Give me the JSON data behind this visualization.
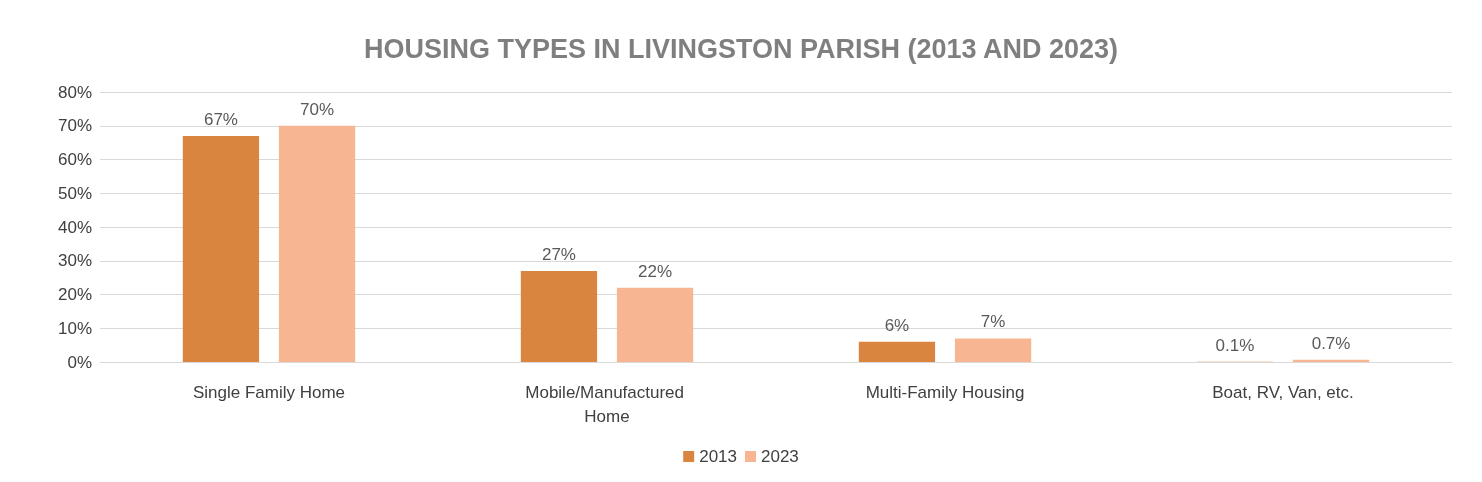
{
  "chart_data": {
    "type": "bar",
    "title": "HOUSING TYPES IN LIVINGSTON PARISH (2013 AND 2023)",
    "categories": [
      "Single Family Home",
      "Mobile/Manufactured Home",
      "Multi-Family Housing",
      "Boat, RV, Van, etc."
    ],
    "series": [
      {
        "name": "2013",
        "color": "#d9843f",
        "values": [
          67,
          27,
          6,
          0.1
        ],
        "value_labels": [
          "67%",
          "27%",
          "6%",
          "0.1%"
        ]
      },
      {
        "name": "2023",
        "color": "#f7b691",
        "values": [
          70,
          22,
          7,
          0.7
        ],
        "value_labels": [
          "70%",
          "22%",
          "7%",
          "0.7%"
        ]
      }
    ],
    "ylim": [
      0,
      80
    ],
    "yticks": [
      {
        "value": 0,
        "label": "0%"
      },
      {
        "value": 10,
        "label": "10%"
      },
      {
        "value": 20,
        "label": "20%"
      },
      {
        "value": 30,
        "label": "30%"
      },
      {
        "value": 40,
        "label": "40%"
      },
      {
        "value": 50,
        "label": "50%"
      },
      {
        "value": 60,
        "label": "60%"
      },
      {
        "value": 70,
        "label": "70%"
      },
      {
        "value": 80,
        "label": "80%"
      }
    ],
    "grid": "y",
    "legend": "bottom"
  }
}
